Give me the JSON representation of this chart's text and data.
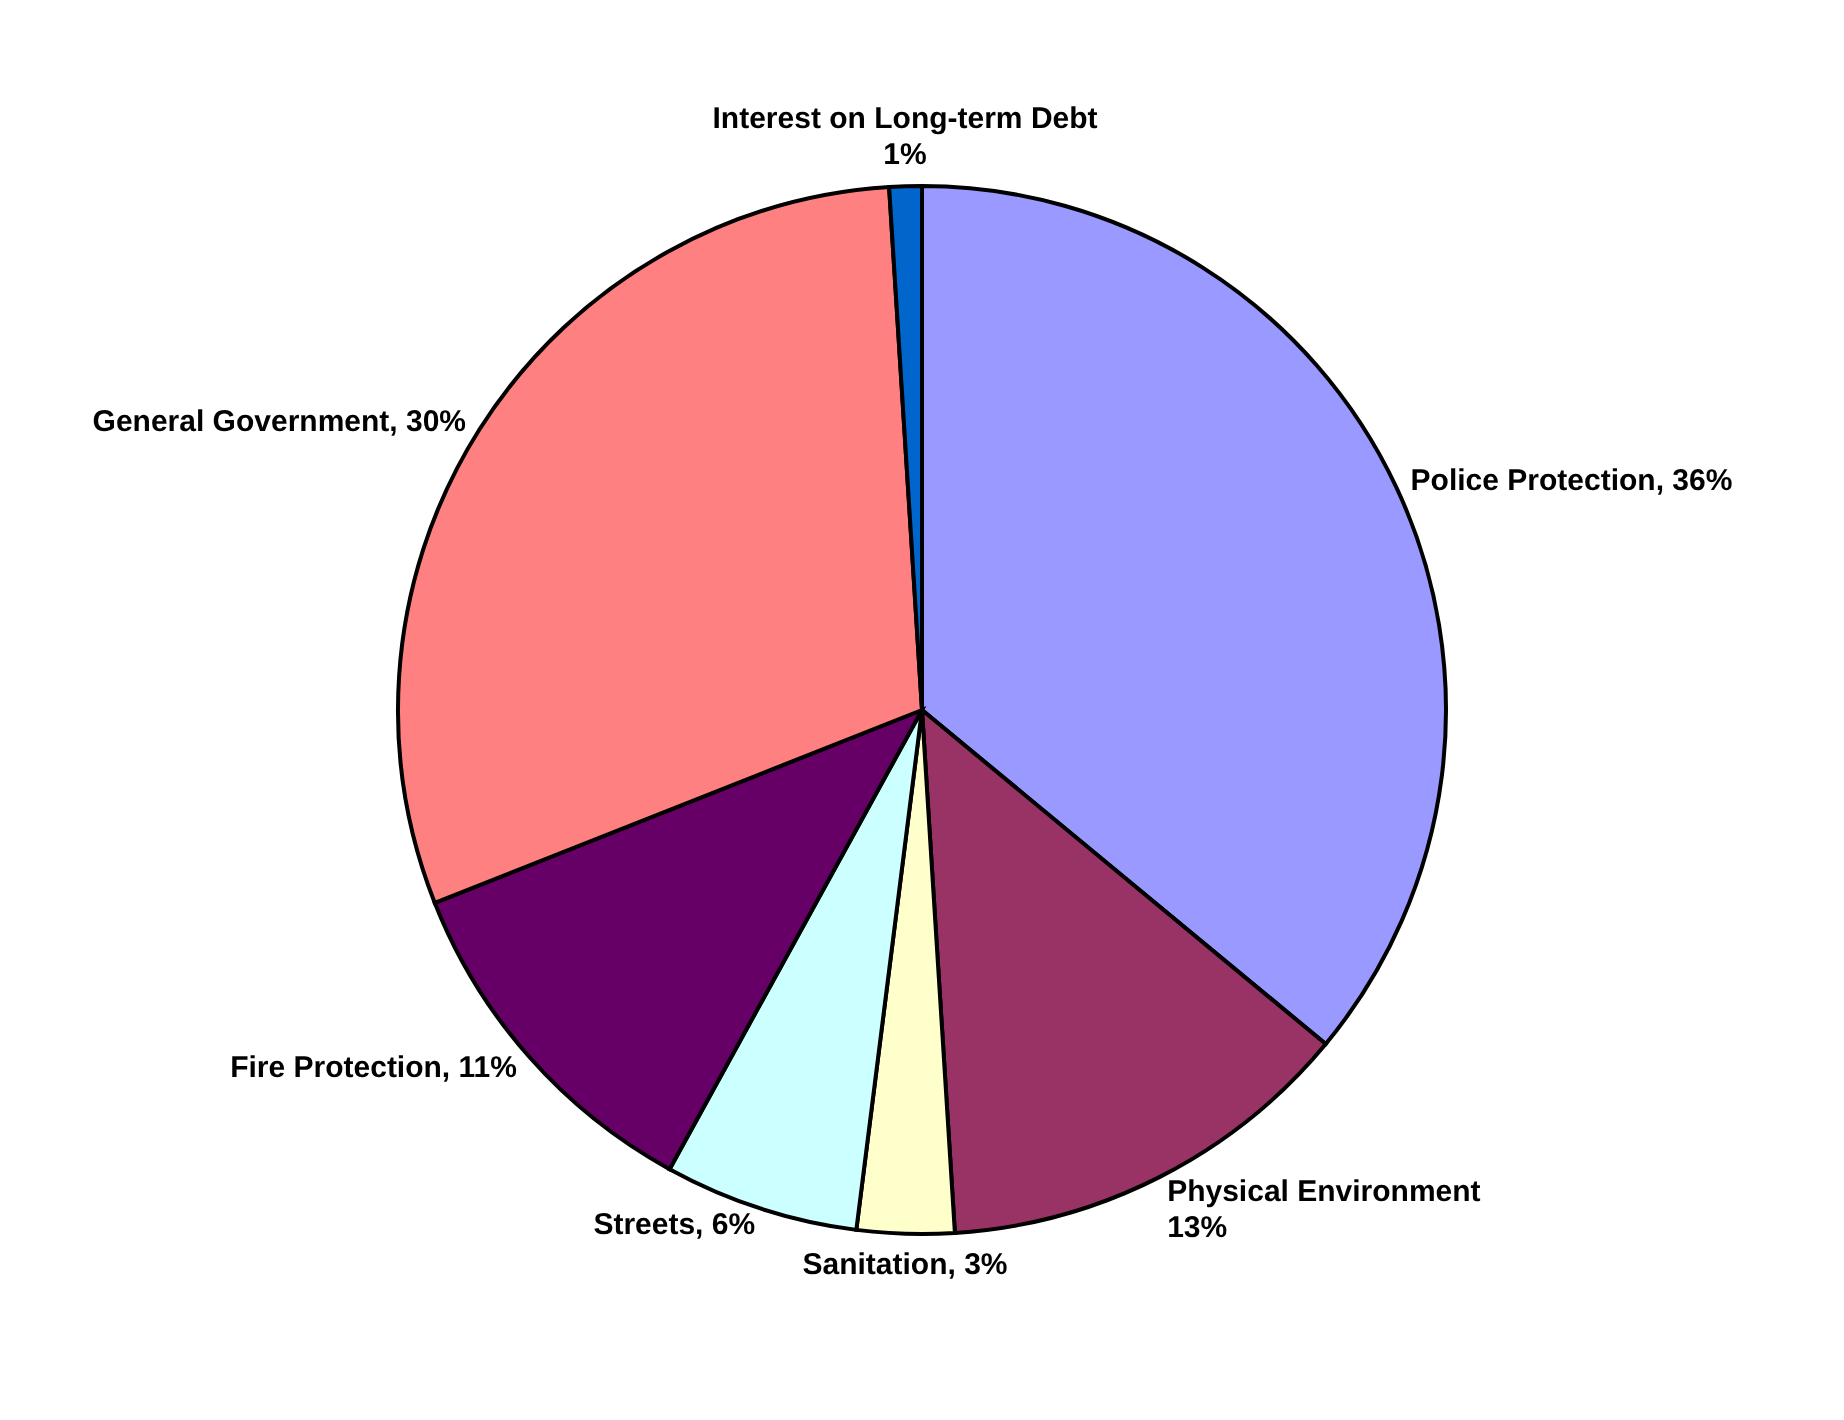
{
  "chart_data": {
    "type": "pie",
    "categories": [
      "Police Protection",
      "Physical Environment",
      "Sanitation",
      "Streets",
      "Fire Protection",
      "General Government",
      "Interest on Long-term Debt"
    ],
    "values": [
      36,
      13,
      3,
      6,
      11,
      30,
      1
    ],
    "value_labels": [
      "36%",
      "13%",
      "3%",
      "6%",
      "11%",
      "30%",
      "1%"
    ],
    "colors": [
      "#9999ff",
      "#993366",
      "#ffffcc",
      "#ccffff",
      "#660066",
      "#ff8080",
      "#0066cc"
    ]
  }
}
